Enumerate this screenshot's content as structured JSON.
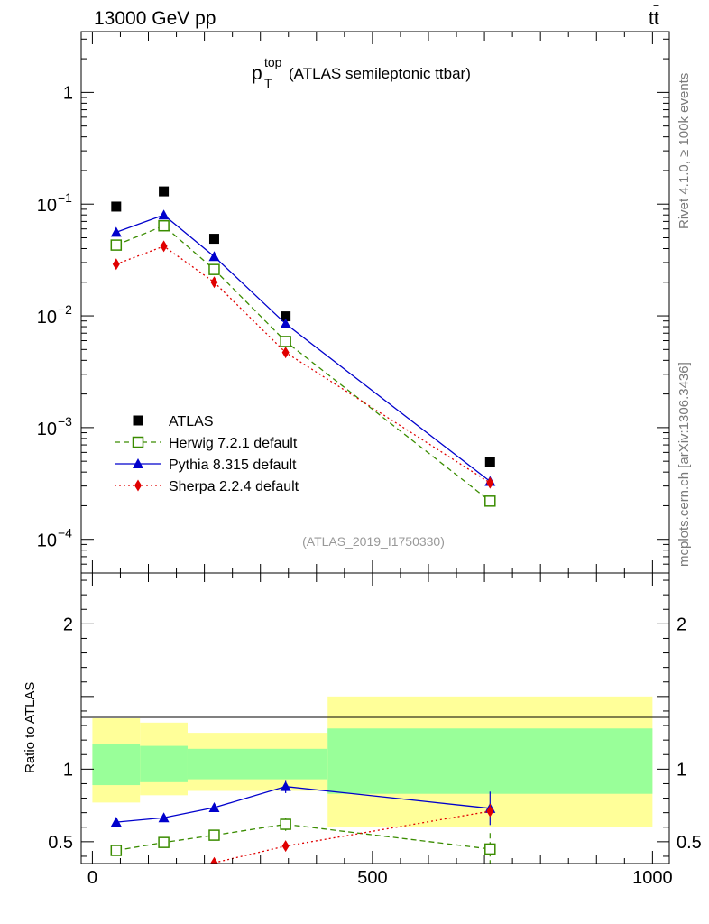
{
  "header": {
    "left": "13000 GeV pp",
    "right_main": "tt",
    "right_bar": "‾"
  },
  "side_labels": {
    "rivet": "Rivet 4.1.0, ≥ 100k events",
    "mcplots": "mcplots.cern.ch [arXiv:1306.3436]"
  },
  "chart_data": {
    "type": "line",
    "title": {
      "prefix": "p",
      "sup": "top",
      "sub": "T",
      "rest": "(ATLAS semileptonic ttbar)"
    },
    "analysis_id": "(ATLAS_2019_I1750330)",
    "main_panel": {
      "yscale": "log",
      "ylim": [
        5e-05,
        3.5
      ],
      "yticks": [
        {
          "value": 1,
          "base": "1",
          "exp": ""
        },
        {
          "value": 0.1,
          "base": "10",
          "exp": "−1"
        },
        {
          "value": 0.01,
          "base": "10",
          "exp": "−2"
        },
        {
          "value": 0.001,
          "base": "10",
          "exp": "−3"
        },
        {
          "value": 0.0001,
          "base": "10",
          "exp": "−4"
        }
      ]
    },
    "ratio_panel": {
      "ylabel": "Ratio to ATLAS",
      "ylim": [
        0.35,
        2.35
      ],
      "yticks": [
        {
          "value": 0.5,
          "label": "0.5"
        },
        {
          "value": 1,
          "label": "1"
        },
        {
          "value": 2,
          "label": "2"
        }
      ],
      "bands": [
        {
          "x0": 0,
          "x1": 85,
          "inner": [
            0.89,
            1.17
          ],
          "outer": [
            0.77,
            1.35
          ]
        },
        {
          "x0": 85,
          "x1": 170,
          "inner": [
            0.91,
            1.16
          ],
          "outer": [
            0.82,
            1.32
          ]
        },
        {
          "x0": 170,
          "x1": 420,
          "inner": [
            0.93,
            1.14
          ],
          "outer": [
            0.85,
            1.25
          ]
        },
        {
          "x0": 420,
          "x1": 1000,
          "inner": [
            0.83,
            1.28
          ],
          "outer": [
            0.6,
            1.5
          ]
        }
      ]
    },
    "xlim": [
      -20,
      1030
    ],
    "xticks": [
      {
        "value": 0,
        "label": "0"
      },
      {
        "value": 500,
        "label": "500"
      },
      {
        "value": 1000,
        "label": "1000"
      }
    ],
    "x": [
      42.5,
      127.5,
      217.5,
      345,
      710
    ],
    "legend": {
      "position": "lower-left"
    },
    "series": [
      {
        "name": "ATLAS",
        "color": "#000000",
        "marker": "square",
        "line": "none",
        "values": [
          0.095,
          0.13,
          0.049,
          0.0099,
          0.00049
        ]
      },
      {
        "name": "Herwig 7.2.1 default",
        "color": "#3a8c00",
        "marker": "open-square",
        "line": "dashed",
        "values": [
          0.043,
          0.064,
          0.026,
          0.0059,
          0.00022
        ],
        "ratio": [
          0.44,
          0.495,
          0.545,
          0.62,
          0.45
        ],
        "ratio_err": [
          0.015,
          0.015,
          0.025,
          0.045,
          0.11
        ]
      },
      {
        "name": "Pythia 8.315 default",
        "color": "#0000cc",
        "marker": "triangle",
        "line": "solid",
        "values": [
          0.056,
          0.08,
          0.034,
          0.0085,
          0.00033
        ],
        "ratio": [
          0.635,
          0.665,
          0.735,
          0.88,
          0.73
        ],
        "ratio_err": [
          0.02,
          0.015,
          0.025,
          0.045,
          0.115
        ]
      },
      {
        "name": "Sherpa 2.2.4 default",
        "color": "#e00000",
        "marker": "diamond",
        "line": "dotted",
        "values": [
          0.029,
          0.042,
          0.02,
          0.0047,
          0.00032
        ],
        "ratio": [
          null,
          null,
          0.355,
          0.47,
          0.71
        ],
        "ratio_err": [
          0,
          0,
          0.01,
          0.02,
          0.05
        ]
      }
    ]
  }
}
